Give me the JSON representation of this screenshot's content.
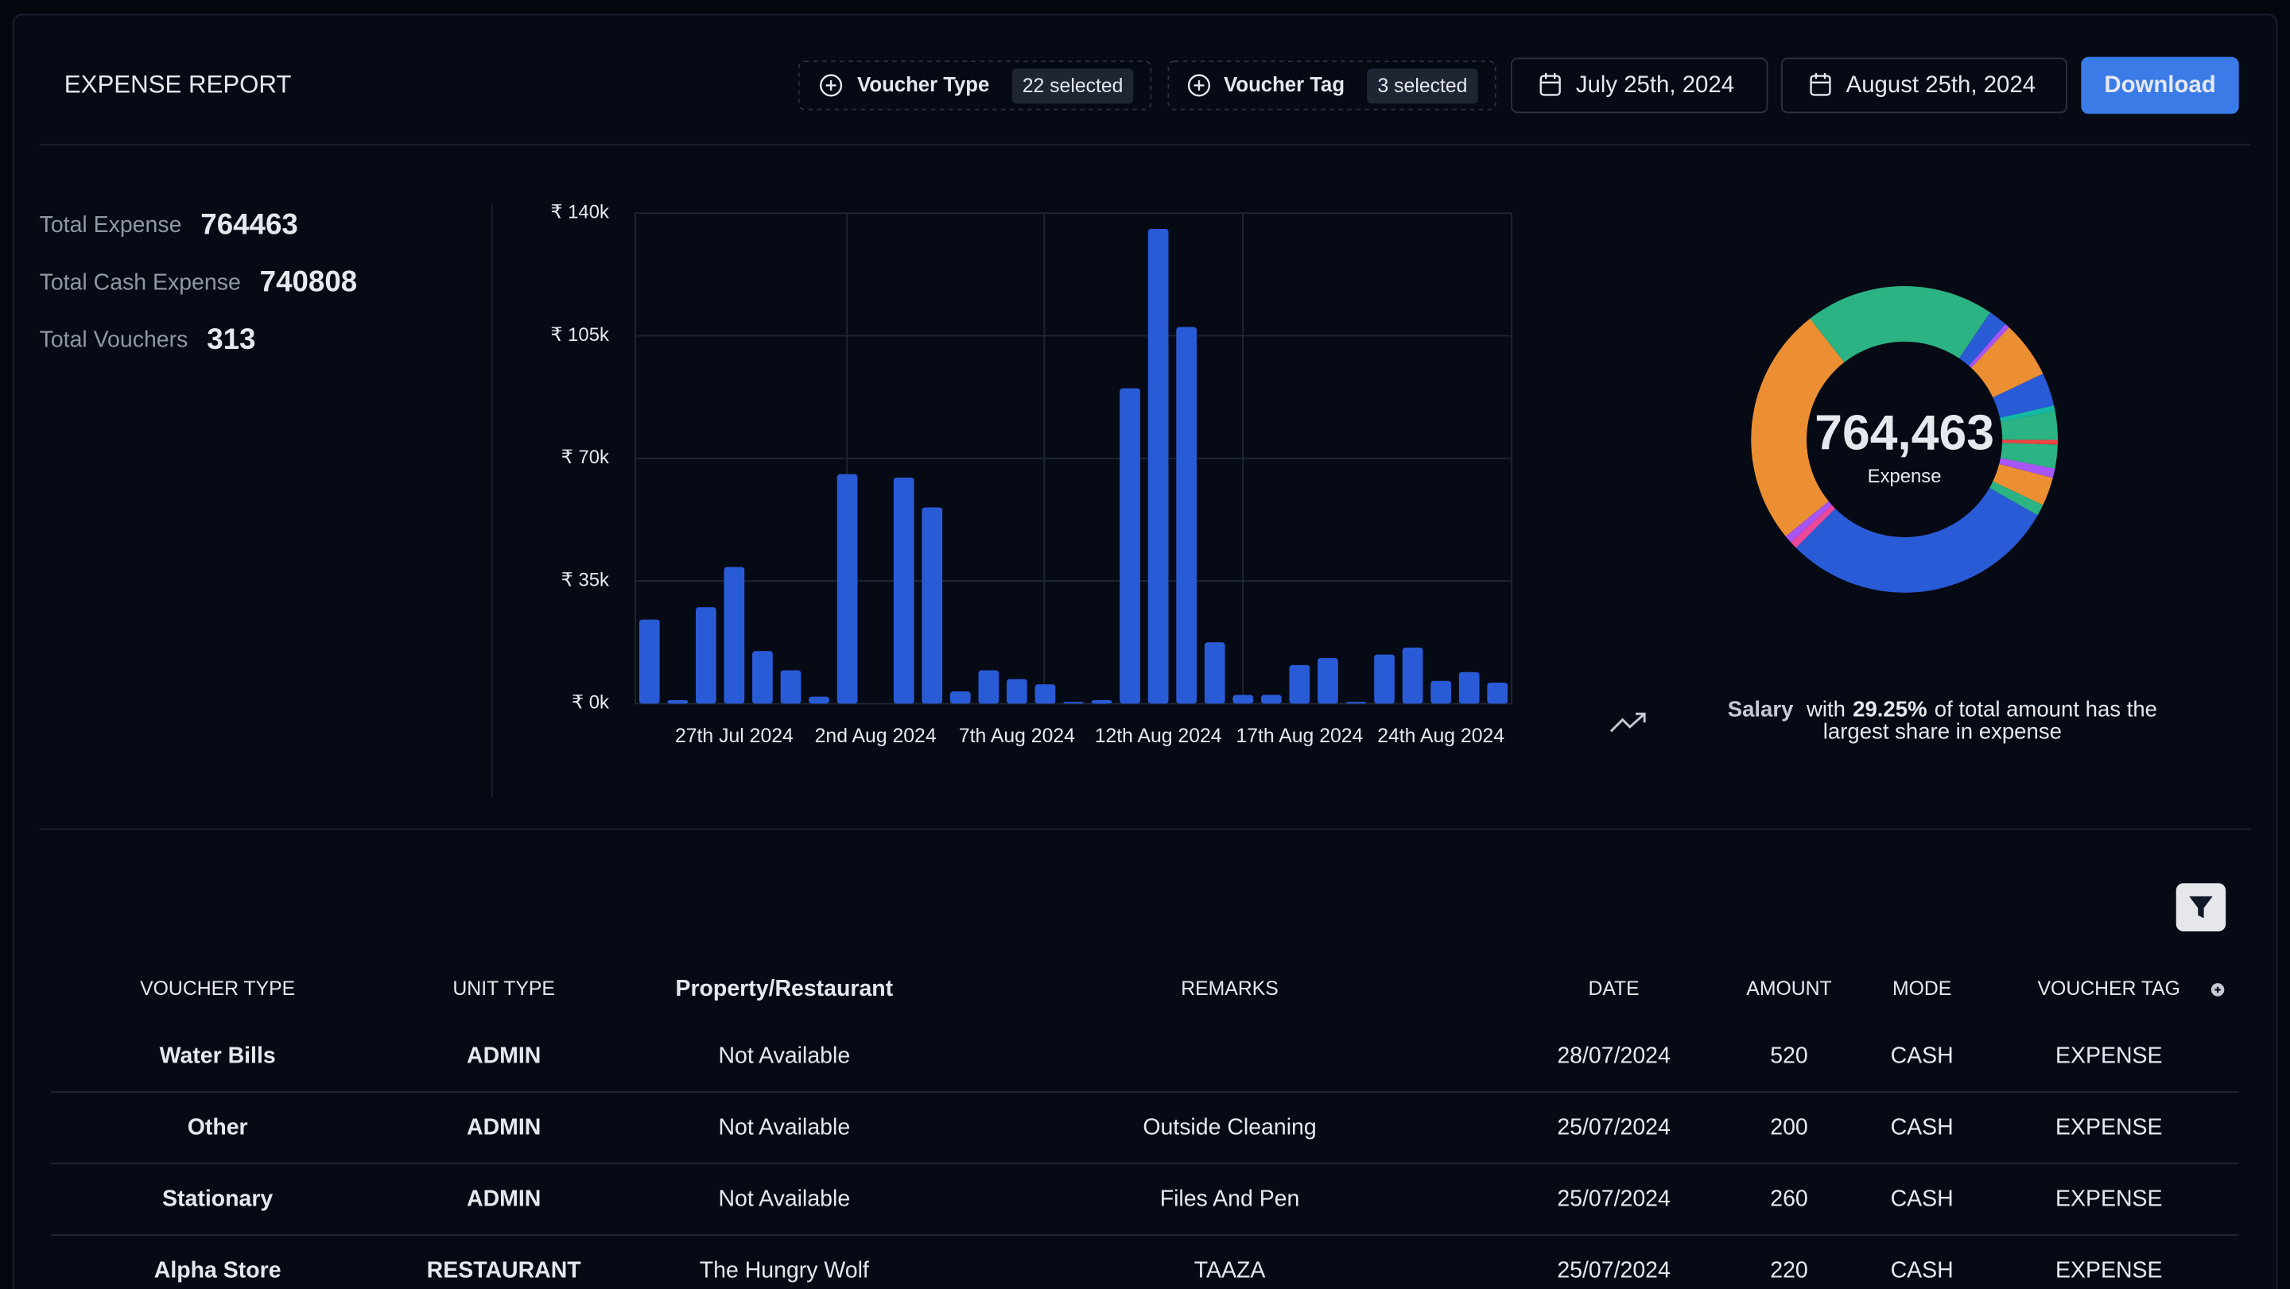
{
  "header": {
    "title": "EXPENSE REPORT",
    "filters": [
      {
        "label": "Voucher Type",
        "badge": "22 selected"
      },
      {
        "label": "Voucher Tag",
        "badge": "3 selected"
      }
    ],
    "start_date": "July 25th, 2024",
    "end_date": "August 25th, 2024",
    "download": "Download"
  },
  "summary": [
    {
      "label": "Total Expense",
      "value": 764463
    },
    {
      "label": "Total Cash Expense",
      "value": 740808
    },
    {
      "label": "Total Vouchers",
      "value": 313
    }
  ],
  "chart_data": [
    {
      "type": "bar",
      "color": "#2a5bd7",
      "grid": true,
      "categories": [
        null,
        null,
        null,
        "27th Jul 2024",
        null,
        null,
        null,
        null,
        "2nd Aug 2024",
        null,
        null,
        null,
        null,
        "7th Aug 2024",
        null,
        null,
        null,
        null,
        "12th Aug 2024",
        null,
        null,
        null,
        null,
        "17th Aug 2024",
        null,
        null,
        null,
        null,
        "24th Aug 2024",
        null,
        null
      ],
      "values": [
        24000,
        1000,
        27500,
        39000,
        15000,
        9500,
        2000,
        65500,
        0,
        64500,
        56000,
        3500,
        9500,
        7000,
        5500,
        500,
        1000,
        90000,
        135500,
        107500,
        17500,
        2500,
        2500,
        11000,
        13000,
        500,
        14000,
        16000,
        6500,
        9000,
        6000
      ],
      "ylim": [
        0,
        140000
      ],
      "yticks": [
        {
          "value": 0,
          "label": "₹ 0k"
        },
        {
          "value": 35000,
          "label": "₹ 35k"
        },
        {
          "value": 70000,
          "label": "₹ 70k"
        },
        {
          "value": 105000,
          "label": "₹ 105k"
        },
        {
          "value": 140000,
          "label": "₹ 140k"
        }
      ]
    },
    {
      "type": "donut",
      "center_label": "764,463",
      "center_sublabel": "Expense",
      "values": [
        20,
        2,
        0.5,
        6,
        3.5,
        0.6,
        3,
        0.5,
        2.5,
        1,
        3,
        1.2,
        29.25,
        0.8,
        0.8,
        25.35
      ],
      "colors": [
        "#2bb383",
        "#2a5bd7",
        "#a855f7",
        "#eb8f32",
        "#2a5bd7",
        "#14b8a6",
        "#2bb383",
        "#ef4444",
        "#2bb383",
        "#a855f7",
        "#eb8f32",
        "#2bb383",
        "#2a5bd7",
        "#ec4899",
        "#a855f7",
        "#eb8f32"
      ]
    }
  ],
  "insight": {
    "category": "Salary",
    "text_1": "with",
    "share": "29.25%",
    "text_2": "of total amount has the",
    "text_3": "largest share in expense"
  },
  "table": {
    "columns": [
      "VOUCHER TYPE",
      "UNIT TYPE",
      "Property/Restaurant",
      "REMARKS",
      "DATE",
      "AMOUNT",
      "MODE",
      "VOUCHER TAG"
    ],
    "rows": [
      [
        "Water Bills",
        "ADMIN",
        "Not Available",
        null,
        "28/07/2024",
        520,
        "CASH",
        "EXPENSE"
      ],
      [
        "Other",
        "ADMIN",
        "Not Available",
        "Outside Cleaning",
        "25/07/2024",
        200,
        "CASH",
        "EXPENSE"
      ],
      [
        "Stationary",
        "ADMIN",
        "Not Available",
        "Files And Pen",
        "25/07/2024",
        260,
        "CASH",
        "EXPENSE"
      ],
      [
        "Alpha Store",
        "RESTAURANT",
        "The Hungry Wolf",
        "TAAZA",
        "25/07/2024",
        220,
        "CASH",
        "EXPENSE"
      ]
    ]
  }
}
